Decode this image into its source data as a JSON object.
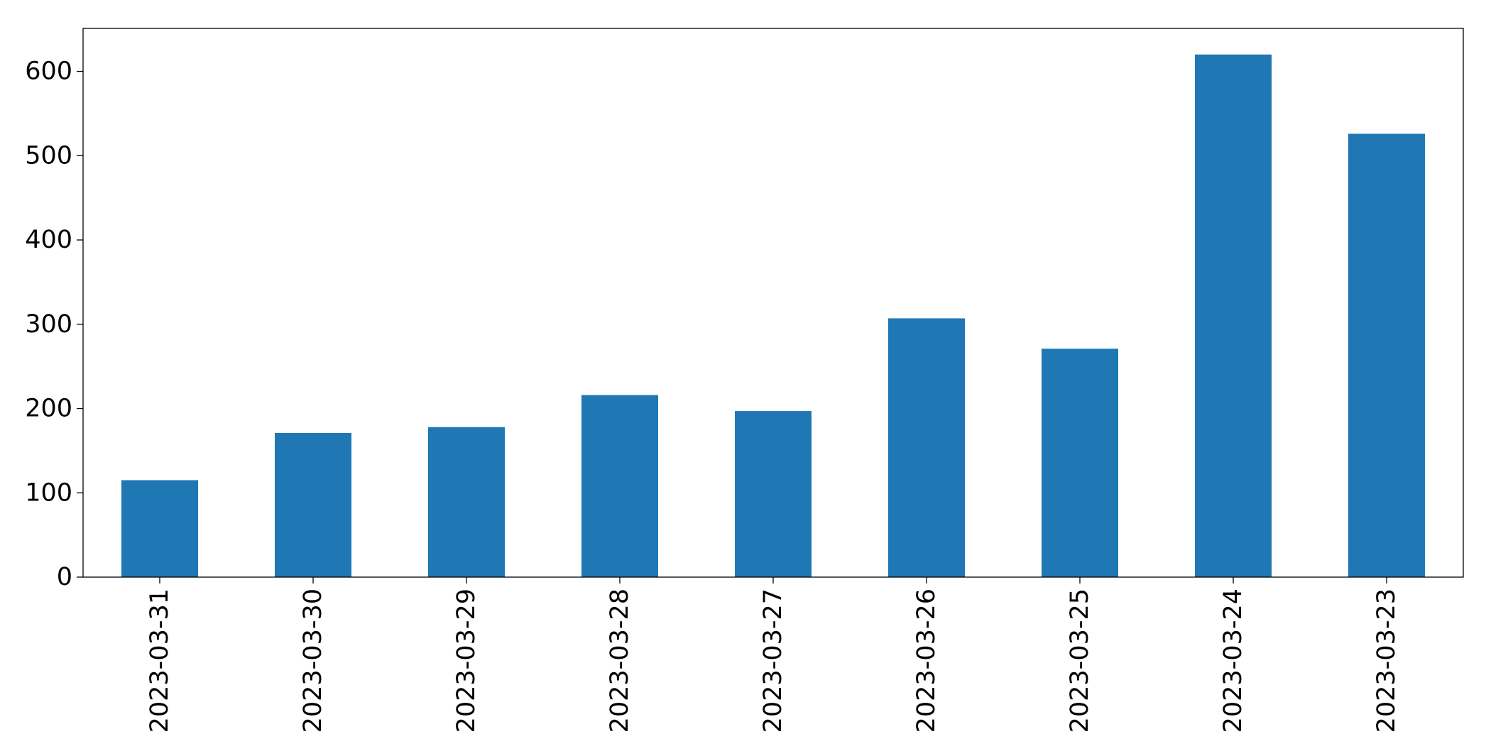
{
  "chart_data": {
    "type": "bar",
    "title": "",
    "xlabel": "",
    "ylabel": "",
    "categories": [
      "2023-03-31",
      "2023-03-30",
      "2023-03-29",
      "2023-03-28",
      "2023-03-27",
      "2023-03-26",
      "2023-03-25",
      "2023-03-24",
      "2023-03-23"
    ],
    "values": [
      115,
      171,
      178,
      216,
      197,
      307,
      271,
      620,
      526
    ],
    "ylim": [
      0,
      651
    ],
    "yticks": [
      0,
      100,
      200,
      300,
      400,
      500,
      600
    ],
    "bar_color": "#1f77b4",
    "grid": false,
    "legend": "none"
  }
}
